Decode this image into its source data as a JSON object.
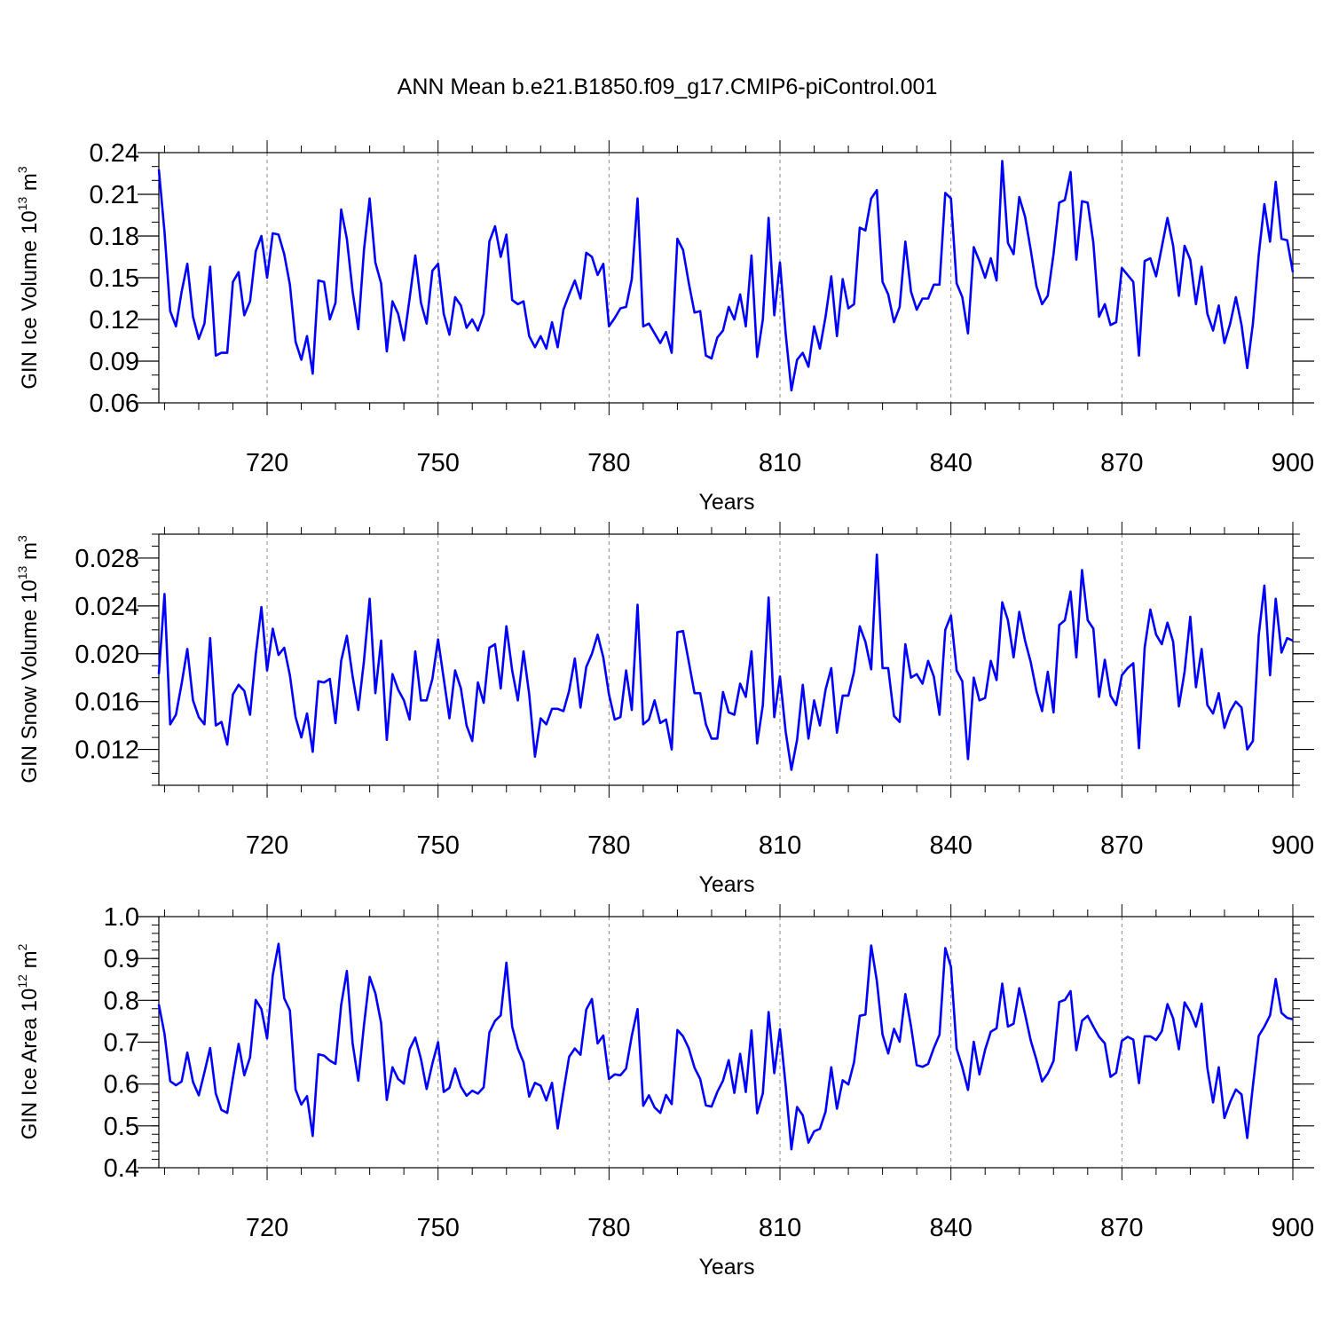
{
  "title": "ANN Mean b.e21.B1850.f09_g17.CMIP6-piControl.001",
  "line_color": "#0000ff",
  "chart_data": [
    {
      "type": "line",
      "ylabel": {
        "text": "GIN Ice Volume 10",
        "exp": "13",
        "unit": " m",
        "unit_exp": "3"
      },
      "xlabel": "Years",
      "xlim": [
        701,
        900
      ],
      "ylim": [
        0.06,
        0.24
      ],
      "xticks": [
        720,
        750,
        780,
        810,
        840,
        870,
        900
      ],
      "yticks": [
        0.06,
        0.09,
        0.12,
        0.15,
        0.18,
        0.21,
        0.24
      ],
      "ytick_labels": [
        "0.06",
        "0.09",
        "0.12",
        "0.15",
        "0.18",
        "0.21",
        "0.24"
      ],
      "yminor_step": 0.01,
      "grid": "vertical dashed at major x ticks",
      "x_start": 701,
      "values": [
        0.228,
        0.183,
        0.126,
        0.115,
        0.14,
        0.16,
        0.122,
        0.106,
        0.117,
        0.158,
        0.094,
        0.096,
        0.096,
        0.147,
        0.154,
        0.123,
        0.133,
        0.169,
        0.18,
        0.15,
        0.182,
        0.181,
        0.167,
        0.145,
        0.104,
        0.091,
        0.108,
        0.081,
        0.148,
        0.147,
        0.12,
        0.132,
        0.199,
        0.178,
        0.14,
        0.113,
        0.17,
        0.207,
        0.161,
        0.146,
        0.097,
        0.133,
        0.124,
        0.105,
        0.135,
        0.166,
        0.132,
        0.117,
        0.155,
        0.16,
        0.124,
        0.109,
        0.136,
        0.13,
        0.114,
        0.12,
        0.112,
        0.124,
        0.176,
        0.187,
        0.165,
        0.181,
        0.134,
        0.131,
        0.133,
        0.108,
        0.1,
        0.108,
        0.099,
        0.118,
        0.1,
        0.127,
        0.138,
        0.148,
        0.135,
        0.168,
        0.165,
        0.152,
        0.16,
        0.115,
        0.121,
        0.128,
        0.129,
        0.149,
        0.207,
        0.115,
        0.117,
        0.11,
        0.103,
        0.111,
        0.096,
        0.178,
        0.17,
        0.146,
        0.125,
        0.126,
        0.094,
        0.092,
        0.107,
        0.112,
        0.129,
        0.12,
        0.138,
        0.115,
        0.166,
        0.093,
        0.12,
        0.193,
        0.123,
        0.161,
        0.11,
        0.069,
        0.091,
        0.096,
        0.086,
        0.115,
        0.099,
        0.122,
        0.151,
        0.108,
        0.149,
        0.128,
        0.131,
        0.186,
        0.184,
        0.207,
        0.213,
        0.147,
        0.138,
        0.118,
        0.129,
        0.176,
        0.14,
        0.127,
        0.135,
        0.135,
        0.145,
        0.145,
        0.211,
        0.207,
        0.146,
        0.136,
        0.11,
        0.172,
        0.162,
        0.15,
        0.164,
        0.148,
        0.234,
        0.175,
        0.167,
        0.208,
        0.194,
        0.17,
        0.144,
        0.131,
        0.137,
        0.167,
        0.204,
        0.206,
        0.226,
        0.163,
        0.205,
        0.204,
        0.175,
        0.122,
        0.131,
        0.116,
        0.118,
        0.157,
        0.152,
        0.147,
        0.094,
        0.162,
        0.164,
        0.151,
        0.172,
        0.193,
        0.173,
        0.137,
        0.173,
        0.163,
        0.131,
        0.158,
        0.124,
        0.112,
        0.13,
        0.103,
        0.117,
        0.136,
        0.116,
        0.085,
        0.117,
        0.166,
        0.203,
        0.176,
        0.219,
        0.178,
        0.177,
        0.154
      ]
    },
    {
      "type": "line",
      "ylabel": {
        "text": "GIN Snow Volume 10",
        "exp": "13",
        "unit": " m",
        "unit_exp": "3"
      },
      "xlabel": "Years",
      "xlim": [
        701,
        900
      ],
      "ylim": [
        0.009,
        0.03
      ],
      "xticks": [
        720,
        750,
        780,
        810,
        840,
        870,
        900
      ],
      "yticks": [
        0.012,
        0.016,
        0.02,
        0.024,
        0.028
      ],
      "ytick_labels": [
        "0.012",
        "0.016",
        "0.020",
        "0.024",
        "0.028"
      ],
      "yminor_step": 0.001,
      "grid": "vertical dashed at major x ticks",
      "x_start": 701,
      "values": [
        0.0183,
        0.025,
        0.0141,
        0.0149,
        0.0175,
        0.0204,
        0.0161,
        0.0147,
        0.0141,
        0.0213,
        0.014,
        0.0143,
        0.0124,
        0.0166,
        0.0174,
        0.0169,
        0.0149,
        0.0199,
        0.0239,
        0.0186,
        0.0221,
        0.0199,
        0.0205,
        0.0182,
        0.0147,
        0.013,
        0.015,
        0.0118,
        0.0177,
        0.0176,
        0.0179,
        0.0142,
        0.0194,
        0.0215,
        0.0181,
        0.0153,
        0.0194,
        0.0246,
        0.0167,
        0.0211,
        0.0128,
        0.0183,
        0.017,
        0.0161,
        0.0145,
        0.0202,
        0.0161,
        0.0161,
        0.0179,
        0.0212,
        0.0179,
        0.0146,
        0.0186,
        0.0171,
        0.014,
        0.0127,
        0.0176,
        0.0159,
        0.0205,
        0.0208,
        0.0171,
        0.0223,
        0.0186,
        0.0161,
        0.0202,
        0.0166,
        0.0114,
        0.0146,
        0.0141,
        0.0154,
        0.0154,
        0.0152,
        0.0169,
        0.0196,
        0.0155,
        0.0189,
        0.02,
        0.0216,
        0.0197,
        0.0166,
        0.0145,
        0.0147,
        0.0186,
        0.0153,
        0.0241,
        0.0141,
        0.0145,
        0.0161,
        0.0142,
        0.0145,
        0.012,
        0.0218,
        0.0219,
        0.0193,
        0.0167,
        0.0167,
        0.0141,
        0.0129,
        0.0129,
        0.0168,
        0.0151,
        0.0149,
        0.0175,
        0.0164,
        0.0202,
        0.0125,
        0.0157,
        0.0247,
        0.0147,
        0.0181,
        0.0135,
        0.0103,
        0.0128,
        0.0174,
        0.0129,
        0.0161,
        0.014,
        0.017,
        0.0188,
        0.0134,
        0.0165,
        0.0165,
        0.0185,
        0.0223,
        0.021,
        0.0187,
        0.0283,
        0.0188,
        0.0188,
        0.0148,
        0.0143,
        0.0208,
        0.018,
        0.0183,
        0.0175,
        0.0194,
        0.0181,
        0.0149,
        0.022,
        0.0232,
        0.0186,
        0.0177,
        0.0112,
        0.018,
        0.0161,
        0.0163,
        0.0194,
        0.0178,
        0.0243,
        0.0228,
        0.0197,
        0.0235,
        0.0211,
        0.0193,
        0.0169,
        0.0152,
        0.0185,
        0.0151,
        0.0224,
        0.0228,
        0.0252,
        0.0197,
        0.027,
        0.0228,
        0.0221,
        0.0164,
        0.0195,
        0.0165,
        0.0157,
        0.0182,
        0.0188,
        0.0192,
        0.0121,
        0.0205,
        0.0237,
        0.0216,
        0.0208,
        0.0226,
        0.021,
        0.0156,
        0.0185,
        0.0231,
        0.0172,
        0.0204,
        0.0157,
        0.015,
        0.0167,
        0.0138,
        0.0152,
        0.016,
        0.0155,
        0.012,
        0.0127,
        0.0215,
        0.0257,
        0.0182,
        0.0246,
        0.0201,
        0.0213,
        0.0211
      ]
    },
    {
      "type": "line",
      "ylabel": {
        "text": "GIN Ice Area 10",
        "exp": "12",
        "unit": " m",
        "unit_exp": "2"
      },
      "xlabel": "Years",
      "xlim": [
        701,
        900
      ],
      "ylim": [
        0.4,
        1.0
      ],
      "xticks": [
        720,
        750,
        780,
        810,
        840,
        870,
        900
      ],
      "yticks": [
        0.4,
        0.5,
        0.6,
        0.7,
        0.8,
        0.9,
        1.0
      ],
      "ytick_labels": [
        "0.4",
        "0.5",
        "0.6",
        "0.7",
        "0.8",
        "0.9",
        "1.0"
      ],
      "yminor_step": 0.02,
      "grid": "vertical dashed at major x ticks",
      "x_start": 701,
      "values": [
        0.79,
        0.72,
        0.607,
        0.597,
        0.606,
        0.675,
        0.605,
        0.573,
        0.628,
        0.686,
        0.577,
        0.538,
        0.531,
        0.615,
        0.696,
        0.621,
        0.664,
        0.801,
        0.779,
        0.709,
        0.86,
        0.935,
        0.805,
        0.776,
        0.587,
        0.551,
        0.571,
        0.476,
        0.671,
        0.668,
        0.656,
        0.648,
        0.789,
        0.87,
        0.697,
        0.608,
        0.741,
        0.856,
        0.817,
        0.746,
        0.562,
        0.64,
        0.612,
        0.601,
        0.683,
        0.711,
        0.66,
        0.588,
        0.649,
        0.7,
        0.581,
        0.591,
        0.637,
        0.594,
        0.572,
        0.584,
        0.577,
        0.592,
        0.723,
        0.751,
        0.764,
        0.89,
        0.737,
        0.685,
        0.652,
        0.57,
        0.603,
        0.596,
        0.561,
        0.603,
        0.494,
        0.582,
        0.665,
        0.685,
        0.67,
        0.778,
        0.803,
        0.697,
        0.716,
        0.612,
        0.623,
        0.621,
        0.637,
        0.715,
        0.779,
        0.548,
        0.573,
        0.544,
        0.531,
        0.574,
        0.552,
        0.729,
        0.714,
        0.685,
        0.639,
        0.612,
        0.549,
        0.546,
        0.581,
        0.608,
        0.657,
        0.579,
        0.672,
        0.581,
        0.728,
        0.53,
        0.578,
        0.772,
        0.626,
        0.731,
        0.597,
        0.444,
        0.545,
        0.525,
        0.46,
        0.487,
        0.493,
        0.534,
        0.64,
        0.541,
        0.609,
        0.599,
        0.652,
        0.763,
        0.766,
        0.931,
        0.846,
        0.718,
        0.673,
        0.732,
        0.701,
        0.815,
        0.738,
        0.645,
        0.641,
        0.648,
        0.686,
        0.718,
        0.925,
        0.88,
        0.684,
        0.64,
        0.586,
        0.701,
        0.623,
        0.682,
        0.725,
        0.733,
        0.84,
        0.737,
        0.744,
        0.829,
        0.767,
        0.704,
        0.658,
        0.606,
        0.625,
        0.655,
        0.796,
        0.801,
        0.822,
        0.681,
        0.751,
        0.763,
        0.737,
        0.713,
        0.697,
        0.617,
        0.627,
        0.703,
        0.713,
        0.706,
        0.602,
        0.714,
        0.714,
        0.705,
        0.726,
        0.791,
        0.757,
        0.683,
        0.795,
        0.772,
        0.737,
        0.792,
        0.638,
        0.556,
        0.64,
        0.519,
        0.557,
        0.587,
        0.575,
        0.471,
        0.596,
        0.715,
        0.737,
        0.764,
        0.851,
        0.77,
        0.758,
        0.755
      ]
    }
  ]
}
